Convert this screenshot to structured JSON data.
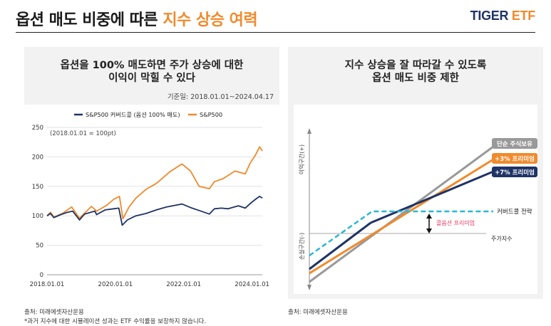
{
  "header": {
    "title_main": "옵션 매도 비중에 따른",
    "title_highlight": "지수 상승 여력",
    "logo_tiger": "TIGER",
    "logo_etf": "ETF"
  },
  "colors": {
    "orange": "#f08a2c",
    "navy": "#1e3366",
    "gray": "#999999",
    "teal": "#29b7d3",
    "pink": "#e8345f"
  },
  "left_panel": {
    "title_line1": "옵션을 100% 매도하면 주가 상승에 대한",
    "title_line2": "이익이 막힐 수 있다",
    "date_note": "기준일: 2018.01.01~2024.04.17",
    "source": "출처: 미래에셋자산운용",
    "footnote": "*과거 지수에 대한 시뮬레이션 성과는 ETF 수익률을 보장하지 않습니다."
  },
  "right_panel": {
    "title_line1": "지수 상승을 잘 따라갈 수 있도록",
    "title_line2": "옵션 매도 비중 제한",
    "source": "출처: 미래에셋자산운용"
  },
  "chart_data": [
    {
      "type": "line",
      "annotation": "(2018.01.01 = 100pt)",
      "ylim": [
        0,
        250
      ],
      "yticks": [
        "0",
        "50",
        "100",
        "150",
        "200",
        "250"
      ],
      "xticks": [
        "2018.01.01",
        "2020.01.01",
        "2022.01.01",
        "2024.01.01"
      ],
      "xrange": [
        2018.0,
        2024.3
      ],
      "legend_position": "top",
      "series": [
        {
          "name": "S&P500 커버드콜 (옵션 100% 매도)",
          "color": "#1e3366",
          "points": [
            [
              2018.0,
              100
            ],
            [
              2018.1,
              104
            ],
            [
              2018.2,
              97
            ],
            [
              2018.4,
              102
            ],
            [
              2018.6,
              106
            ],
            [
              2018.75,
              108
            ],
            [
              2018.95,
              93
            ],
            [
              2019.1,
              103
            ],
            [
              2019.4,
              108
            ],
            [
              2019.45,
              102
            ],
            [
              2019.7,
              110
            ],
            [
              2019.95,
              112
            ],
            [
              2020.1,
              113
            ],
            [
              2020.2,
              84
            ],
            [
              2020.35,
              93
            ],
            [
              2020.6,
              100
            ],
            [
              2020.9,
              104
            ],
            [
              2021.2,
              110
            ],
            [
              2021.5,
              115
            ],
            [
              2021.95,
              120
            ],
            [
              2022.2,
              114
            ],
            [
              2022.45,
              109
            ],
            [
              2022.75,
              103
            ],
            [
              2022.9,
              112
            ],
            [
              2023.1,
              113
            ],
            [
              2023.3,
              112
            ],
            [
              2023.6,
              117
            ],
            [
              2023.8,
              113
            ],
            [
              2023.95,
              121
            ],
            [
              2024.1,
              128
            ],
            [
              2024.22,
              133
            ],
            [
              2024.3,
              130
            ]
          ]
        },
        {
          "name": "S&P500",
          "color": "#f08a2c",
          "points": [
            [
              2018.0,
              100
            ],
            [
              2018.1,
              106
            ],
            [
              2018.2,
              98
            ],
            [
              2018.45,
              104
            ],
            [
              2018.72,
              115
            ],
            [
              2018.95,
              96
            ],
            [
              2019.3,
              116
            ],
            [
              2019.45,
              108
            ],
            [
              2019.75,
              118
            ],
            [
              2019.95,
              128
            ],
            [
              2020.12,
              133
            ],
            [
              2020.22,
              95
            ],
            [
              2020.4,
              115
            ],
            [
              2020.6,
              130
            ],
            [
              2020.9,
              145
            ],
            [
              2021.2,
              155
            ],
            [
              2021.6,
              175
            ],
            [
              2021.95,
              188
            ],
            [
              2022.2,
              176
            ],
            [
              2022.45,
              150
            ],
            [
              2022.75,
              146
            ],
            [
              2022.9,
              158
            ],
            [
              2023.15,
              163
            ],
            [
              2023.5,
              176
            ],
            [
              2023.8,
              171
            ],
            [
              2023.95,
              190
            ],
            [
              2024.1,
              203
            ],
            [
              2024.22,
              217
            ],
            [
              2024.3,
              210
            ]
          ]
        }
      ]
    },
    {
      "type": "line",
      "y_axis_top_label": "이익구간(+)",
      "y_axis_bottom_label": "손실구간(-)",
      "x_axis_label": "주가지수",
      "annotation": "콜옵션 프리미엄",
      "series": [
        {
          "name": "단순 주식보유",
          "color": "#999999",
          "line_style": "solid"
        },
        {
          "name": "+3% 프리미엄",
          "color": "#f08a2c",
          "line_style": "solid"
        },
        {
          "name": "+7% 프리미엄",
          "color": "#1e3366",
          "line_style": "solid"
        },
        {
          "name": "커버드콜 전략",
          "color": "#29b7d3",
          "line_style": "dashed"
        }
      ]
    }
  ]
}
